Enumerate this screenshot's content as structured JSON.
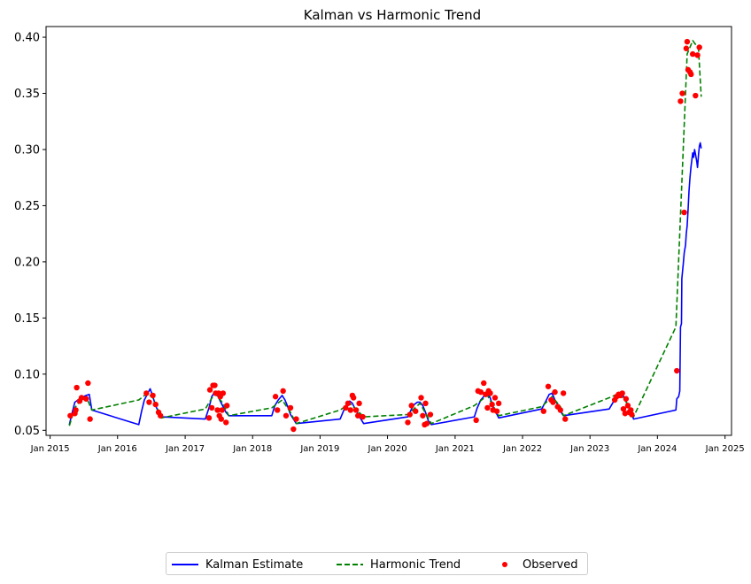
{
  "chart_data": {
    "type": "line",
    "title": "Kalman vs Harmonic Trend",
    "xlabel": "",
    "ylabel": "",
    "xlim": [
      "2014-12-10",
      "2025-02-05"
    ],
    "ylim": [
      0.0455,
      0.4095
    ],
    "x_ticks": [
      {
        "date": "2015-01-01",
        "label": "Jan 2015"
      },
      {
        "date": "2016-01-01",
        "label": "Jan 2016"
      },
      {
        "date": "2017-01-01",
        "label": "Jan 2017"
      },
      {
        "date": "2018-01-01",
        "label": "Jan 2018"
      },
      {
        "date": "2019-01-01",
        "label": "Jan 2019"
      },
      {
        "date": "2020-01-01",
        "label": "Jan 2020"
      },
      {
        "date": "2021-01-01",
        "label": "Jan 2021"
      },
      {
        "date": "2022-01-01",
        "label": "Jan 2022"
      },
      {
        "date": "2023-01-01",
        "label": "Jan 2023"
      },
      {
        "date": "2024-01-01",
        "label": "Jan 2024"
      },
      {
        "date": "2025-01-01",
        "label": "Jan 2025"
      }
    ],
    "y_ticks": [
      "0.05",
      "0.10",
      "0.15",
      "0.20",
      "0.25",
      "0.30",
      "0.35",
      "0.40"
    ],
    "legend_position": "bottom-center",
    "grid": false,
    "series": [
      {
        "name": "Kalman Estimate",
        "style": "solid",
        "color": "#0000ff",
        "points": [
          [
            "2015-04-15",
            0.055
          ],
          [
            "2015-05-01",
            0.066
          ],
          [
            "2015-05-15",
            0.075
          ],
          [
            "2015-06-01",
            0.077
          ],
          [
            "2015-06-15",
            0.079
          ],
          [
            "2015-07-01",
            0.08
          ],
          [
            "2015-07-15",
            0.081
          ],
          [
            "2015-08-01",
            0.082
          ],
          [
            "2015-08-15",
            0.068
          ],
          [
            "2016-04-25",
            0.055
          ],
          [
            "2016-05-10",
            0.067
          ],
          [
            "2016-05-25",
            0.077
          ],
          [
            "2016-06-10",
            0.082
          ],
          [
            "2016-06-25",
            0.087
          ],
          [
            "2016-07-10",
            0.08
          ],
          [
            "2016-07-25",
            0.072
          ],
          [
            "2016-08-10",
            0.066
          ],
          [
            "2016-08-25",
            0.062
          ],
          [
            "2017-04-20",
            0.06
          ],
          [
            "2017-05-10",
            0.07
          ],
          [
            "2017-05-25",
            0.08
          ],
          [
            "2017-06-10",
            0.084
          ],
          [
            "2017-06-25",
            0.081
          ],
          [
            "2017-07-10",
            0.076
          ],
          [
            "2017-07-25",
            0.071
          ],
          [
            "2017-08-10",
            0.066
          ],
          [
            "2017-08-25",
            0.063
          ],
          [
            "2018-04-15",
            0.063
          ],
          [
            "2018-05-01",
            0.072
          ],
          [
            "2018-05-20",
            0.077
          ],
          [
            "2018-06-10",
            0.081
          ],
          [
            "2018-06-25",
            0.077
          ],
          [
            "2018-07-10",
            0.071
          ],
          [
            "2018-07-25",
            0.064
          ],
          [
            "2018-08-10",
            0.06
          ],
          [
            "2018-08-25",
            0.056
          ],
          [
            "2019-04-20",
            0.06
          ],
          [
            "2019-05-10",
            0.068
          ],
          [
            "2019-05-25",
            0.073
          ],
          [
            "2019-06-10",
            0.076
          ],
          [
            "2019-06-25",
            0.074
          ],
          [
            "2019-07-10",
            0.069
          ],
          [
            "2019-07-25",
            0.065
          ],
          [
            "2019-08-10",
            0.06
          ],
          [
            "2019-08-25",
            0.056
          ],
          [
            "2020-04-20",
            0.062
          ],
          [
            "2020-05-10",
            0.069
          ],
          [
            "2020-05-25",
            0.073
          ],
          [
            "2020-06-10",
            0.075
          ],
          [
            "2020-06-25",
            0.075
          ],
          [
            "2020-07-10",
            0.072
          ],
          [
            "2020-07-25",
            0.066
          ],
          [
            "2020-08-10",
            0.058
          ],
          [
            "2020-08-25",
            0.055
          ],
          [
            "2021-04-15",
            0.062
          ],
          [
            "2021-05-01",
            0.07
          ],
          [
            "2021-05-20",
            0.077
          ],
          [
            "2021-06-10",
            0.081
          ],
          [
            "2021-06-25",
            0.083
          ],
          [
            "2021-07-10",
            0.079
          ],
          [
            "2021-07-25",
            0.071
          ],
          [
            "2021-08-10",
            0.066
          ],
          [
            "2021-08-25",
            0.061
          ],
          [
            "2022-04-15",
            0.069
          ],
          [
            "2022-05-10",
            0.077
          ],
          [
            "2022-05-25",
            0.082
          ],
          [
            "2022-06-10",
            0.083
          ],
          [
            "2022-06-25",
            0.077
          ],
          [
            "2022-07-10",
            0.073
          ],
          [
            "2022-07-25",
            0.067
          ],
          [
            "2022-08-10",
            0.063
          ],
          [
            "2023-04-15",
            0.069
          ],
          [
            "2023-05-10",
            0.076
          ],
          [
            "2023-05-25",
            0.08
          ],
          [
            "2023-06-10",
            0.083
          ],
          [
            "2023-06-25",
            0.082
          ],
          [
            "2023-07-10",
            0.078
          ],
          [
            "2023-07-25",
            0.072
          ],
          [
            "2023-08-10",
            0.067
          ],
          [
            "2023-08-25",
            0.06
          ],
          [
            "2024-04-10",
            0.068
          ],
          [
            "2024-04-15",
            0.078
          ],
          [
            "2024-04-25",
            0.08
          ],
          [
            "2024-05-01",
            0.085
          ],
          [
            "2024-05-05",
            0.142
          ],
          [
            "2024-05-10",
            0.145
          ],
          [
            "2024-05-12",
            0.185
          ],
          [
            "2024-05-20",
            0.198
          ],
          [
            "2024-05-25",
            0.208
          ],
          [
            "2024-06-01",
            0.215
          ],
          [
            "2024-06-05",
            0.225
          ],
          [
            "2024-06-10",
            0.232
          ],
          [
            "2024-06-15",
            0.247
          ],
          [
            "2024-06-20",
            0.263
          ],
          [
            "2024-06-25",
            0.275
          ],
          [
            "2024-07-01",
            0.285
          ],
          [
            "2024-07-05",
            0.29
          ],
          [
            "2024-07-10",
            0.297
          ],
          [
            "2024-07-15",
            0.293
          ],
          [
            "2024-07-20",
            0.3
          ],
          [
            "2024-07-25",
            0.296
          ],
          [
            "2024-08-01",
            0.289
          ],
          [
            "2024-08-05",
            0.284
          ],
          [
            "2024-08-10",
            0.295
          ],
          [
            "2024-08-15",
            0.303
          ],
          [
            "2024-08-20",
            0.306
          ],
          [
            "2024-08-25",
            0.301
          ]
        ]
      },
      {
        "name": "Harmonic Trend",
        "style": "dashed",
        "color": "#008000",
        "points": [
          [
            "2015-04-15",
            0.054
          ],
          [
            "2015-05-15",
            0.07
          ],
          [
            "2015-06-15",
            0.077
          ],
          [
            "2015-07-15",
            0.08
          ],
          [
            "2015-08-15",
            0.068
          ],
          [
            "2016-04-25",
            0.077
          ],
          [
            "2016-06-10",
            0.083
          ],
          [
            "2016-07-10",
            0.079
          ],
          [
            "2016-08-25",
            0.061
          ],
          [
            "2017-04-20",
            0.069
          ],
          [
            "2017-06-10",
            0.083
          ],
          [
            "2017-07-25",
            0.074
          ],
          [
            "2017-08-25",
            0.063
          ],
          [
            "2018-04-15",
            0.07
          ],
          [
            "2018-06-10",
            0.077
          ],
          [
            "2018-07-25",
            0.066
          ],
          [
            "2018-08-25",
            0.056
          ],
          [
            "2019-04-20",
            0.068
          ],
          [
            "2019-06-10",
            0.074
          ],
          [
            "2019-07-25",
            0.067
          ],
          [
            "2019-08-25",
            0.062
          ],
          [
            "2020-04-20",
            0.064
          ],
          [
            "2020-06-25",
            0.074
          ],
          [
            "2020-08-25",
            0.056
          ],
          [
            "2021-04-15",
            0.072
          ],
          [
            "2021-06-25",
            0.081
          ],
          [
            "2021-08-25",
            0.063
          ],
          [
            "2022-04-15",
            0.071
          ],
          [
            "2022-06-10",
            0.08
          ],
          [
            "2022-07-25",
            0.071
          ],
          [
            "2022-08-10",
            0.063
          ],
          [
            "2023-04-15",
            0.079
          ],
          [
            "2023-06-10",
            0.083
          ],
          [
            "2023-07-25",
            0.073
          ],
          [
            "2023-08-25",
            0.062
          ],
          [
            "2024-04-10",
            0.142
          ],
          [
            "2024-06-10",
            0.385
          ],
          [
            "2024-07-10",
            0.397
          ],
          [
            "2024-08-10",
            0.39
          ],
          [
            "2024-08-25",
            0.347
          ]
        ]
      },
      {
        "name": "Observed",
        "style": "scatter",
        "color": "#ff0000",
        "points": [
          [
            "2015-04-20",
            0.063
          ],
          [
            "2015-05-15",
            0.065
          ],
          [
            "2015-05-20",
            0.068
          ],
          [
            "2015-05-25",
            0.088
          ],
          [
            "2015-06-10",
            0.076
          ],
          [
            "2015-06-20",
            0.079
          ],
          [
            "2015-07-15",
            0.078
          ],
          [
            "2015-07-25",
            0.092
          ],
          [
            "2015-08-05",
            0.06
          ],
          [
            "2016-06-05",
            0.083
          ],
          [
            "2016-06-20",
            0.075
          ],
          [
            "2016-07-10",
            0.081
          ],
          [
            "2016-07-25",
            0.073
          ],
          [
            "2016-08-10",
            0.066
          ],
          [
            "2016-08-20",
            0.063
          ],
          [
            "2017-05-10",
            0.061
          ],
          [
            "2017-05-15",
            0.086
          ],
          [
            "2017-05-25",
            0.07
          ],
          [
            "2017-06-01",
            0.09
          ],
          [
            "2017-06-10",
            0.09
          ],
          [
            "2017-06-15",
            0.083
          ],
          [
            "2017-06-25",
            0.068
          ],
          [
            "2017-07-01",
            0.083
          ],
          [
            "2017-07-05",
            0.063
          ],
          [
            "2017-07-10",
            0.08
          ],
          [
            "2017-07-15",
            0.06
          ],
          [
            "2017-07-20",
            0.068
          ],
          [
            "2017-07-25",
            0.083
          ],
          [
            "2017-08-10",
            0.057
          ],
          [
            "2017-08-15",
            0.072
          ],
          [
            "2018-05-05",
            0.08
          ],
          [
            "2018-05-15",
            0.068
          ],
          [
            "2018-06-15",
            0.085
          ],
          [
            "2018-07-01",
            0.063
          ],
          [
            "2018-07-25",
            0.07
          ],
          [
            "2018-08-10",
            0.051
          ],
          [
            "2018-08-25",
            0.06
          ],
          [
            "2019-05-20",
            0.07
          ],
          [
            "2019-06-01",
            0.074
          ],
          [
            "2019-06-15",
            0.068
          ],
          [
            "2019-06-25",
            0.081
          ],
          [
            "2019-07-01",
            0.079
          ],
          [
            "2019-07-15",
            0.068
          ],
          [
            "2019-07-25",
            0.063
          ],
          [
            "2019-08-01",
            0.074
          ],
          [
            "2019-08-20",
            0.062
          ],
          [
            "2020-04-20",
            0.057
          ],
          [
            "2020-05-01",
            0.064
          ],
          [
            "2020-05-10",
            0.072
          ],
          [
            "2020-06-01",
            0.067
          ],
          [
            "2020-07-01",
            0.079
          ],
          [
            "2020-07-10",
            0.063
          ],
          [
            "2020-07-20",
            0.055
          ],
          [
            "2020-07-25",
            0.074
          ],
          [
            "2020-08-01",
            0.056
          ],
          [
            "2020-08-20",
            0.064
          ],
          [
            "2021-04-25",
            0.059
          ],
          [
            "2021-05-05",
            0.085
          ],
          [
            "2021-05-20",
            0.084
          ],
          [
            "2021-06-05",
            0.092
          ],
          [
            "2021-06-15",
            0.082
          ],
          [
            "2021-06-25",
            0.07
          ],
          [
            "2021-07-01",
            0.085
          ],
          [
            "2021-07-10",
            0.083
          ],
          [
            "2021-07-20",
            0.073
          ],
          [
            "2021-07-25",
            0.068
          ],
          [
            "2021-08-05",
            0.079
          ],
          [
            "2021-08-15",
            0.067
          ],
          [
            "2021-08-25",
            0.074
          ],
          [
            "2022-04-25",
            0.067
          ],
          [
            "2022-05-20",
            0.089
          ],
          [
            "2022-06-05",
            0.077
          ],
          [
            "2022-06-15",
            0.075
          ],
          [
            "2022-06-25",
            0.084
          ],
          [
            "2022-07-10",
            0.071
          ],
          [
            "2022-07-25",
            0.068
          ],
          [
            "2022-08-10",
            0.083
          ],
          [
            "2022-08-20",
            0.06
          ],
          [
            "2023-05-15",
            0.077
          ],
          [
            "2023-05-25",
            0.08
          ],
          [
            "2023-06-05",
            0.082
          ],
          [
            "2023-06-15",
            0.081
          ],
          [
            "2023-06-25",
            0.083
          ],
          [
            "2023-07-01",
            0.069
          ],
          [
            "2023-07-10",
            0.065
          ],
          [
            "2023-07-15",
            0.078
          ],
          [
            "2023-07-25",
            0.072
          ],
          [
            "2023-08-01",
            0.066
          ],
          [
            "2023-08-10",
            0.068
          ],
          [
            "2023-08-15",
            0.064
          ],
          [
            "2024-04-15",
            0.103
          ],
          [
            "2024-05-05",
            0.343
          ],
          [
            "2024-05-15",
            0.35
          ],
          [
            "2024-05-25",
            0.244
          ],
          [
            "2024-06-05",
            0.39
          ],
          [
            "2024-06-10",
            0.396
          ],
          [
            "2024-06-15",
            0.371
          ],
          [
            "2024-06-25",
            0.369
          ],
          [
            "2024-07-01",
            0.367
          ],
          [
            "2024-07-10",
            0.385
          ],
          [
            "2024-07-25",
            0.348
          ],
          [
            "2024-08-05",
            0.384
          ],
          [
            "2024-08-15",
            0.391
          ]
        ]
      }
    ]
  }
}
